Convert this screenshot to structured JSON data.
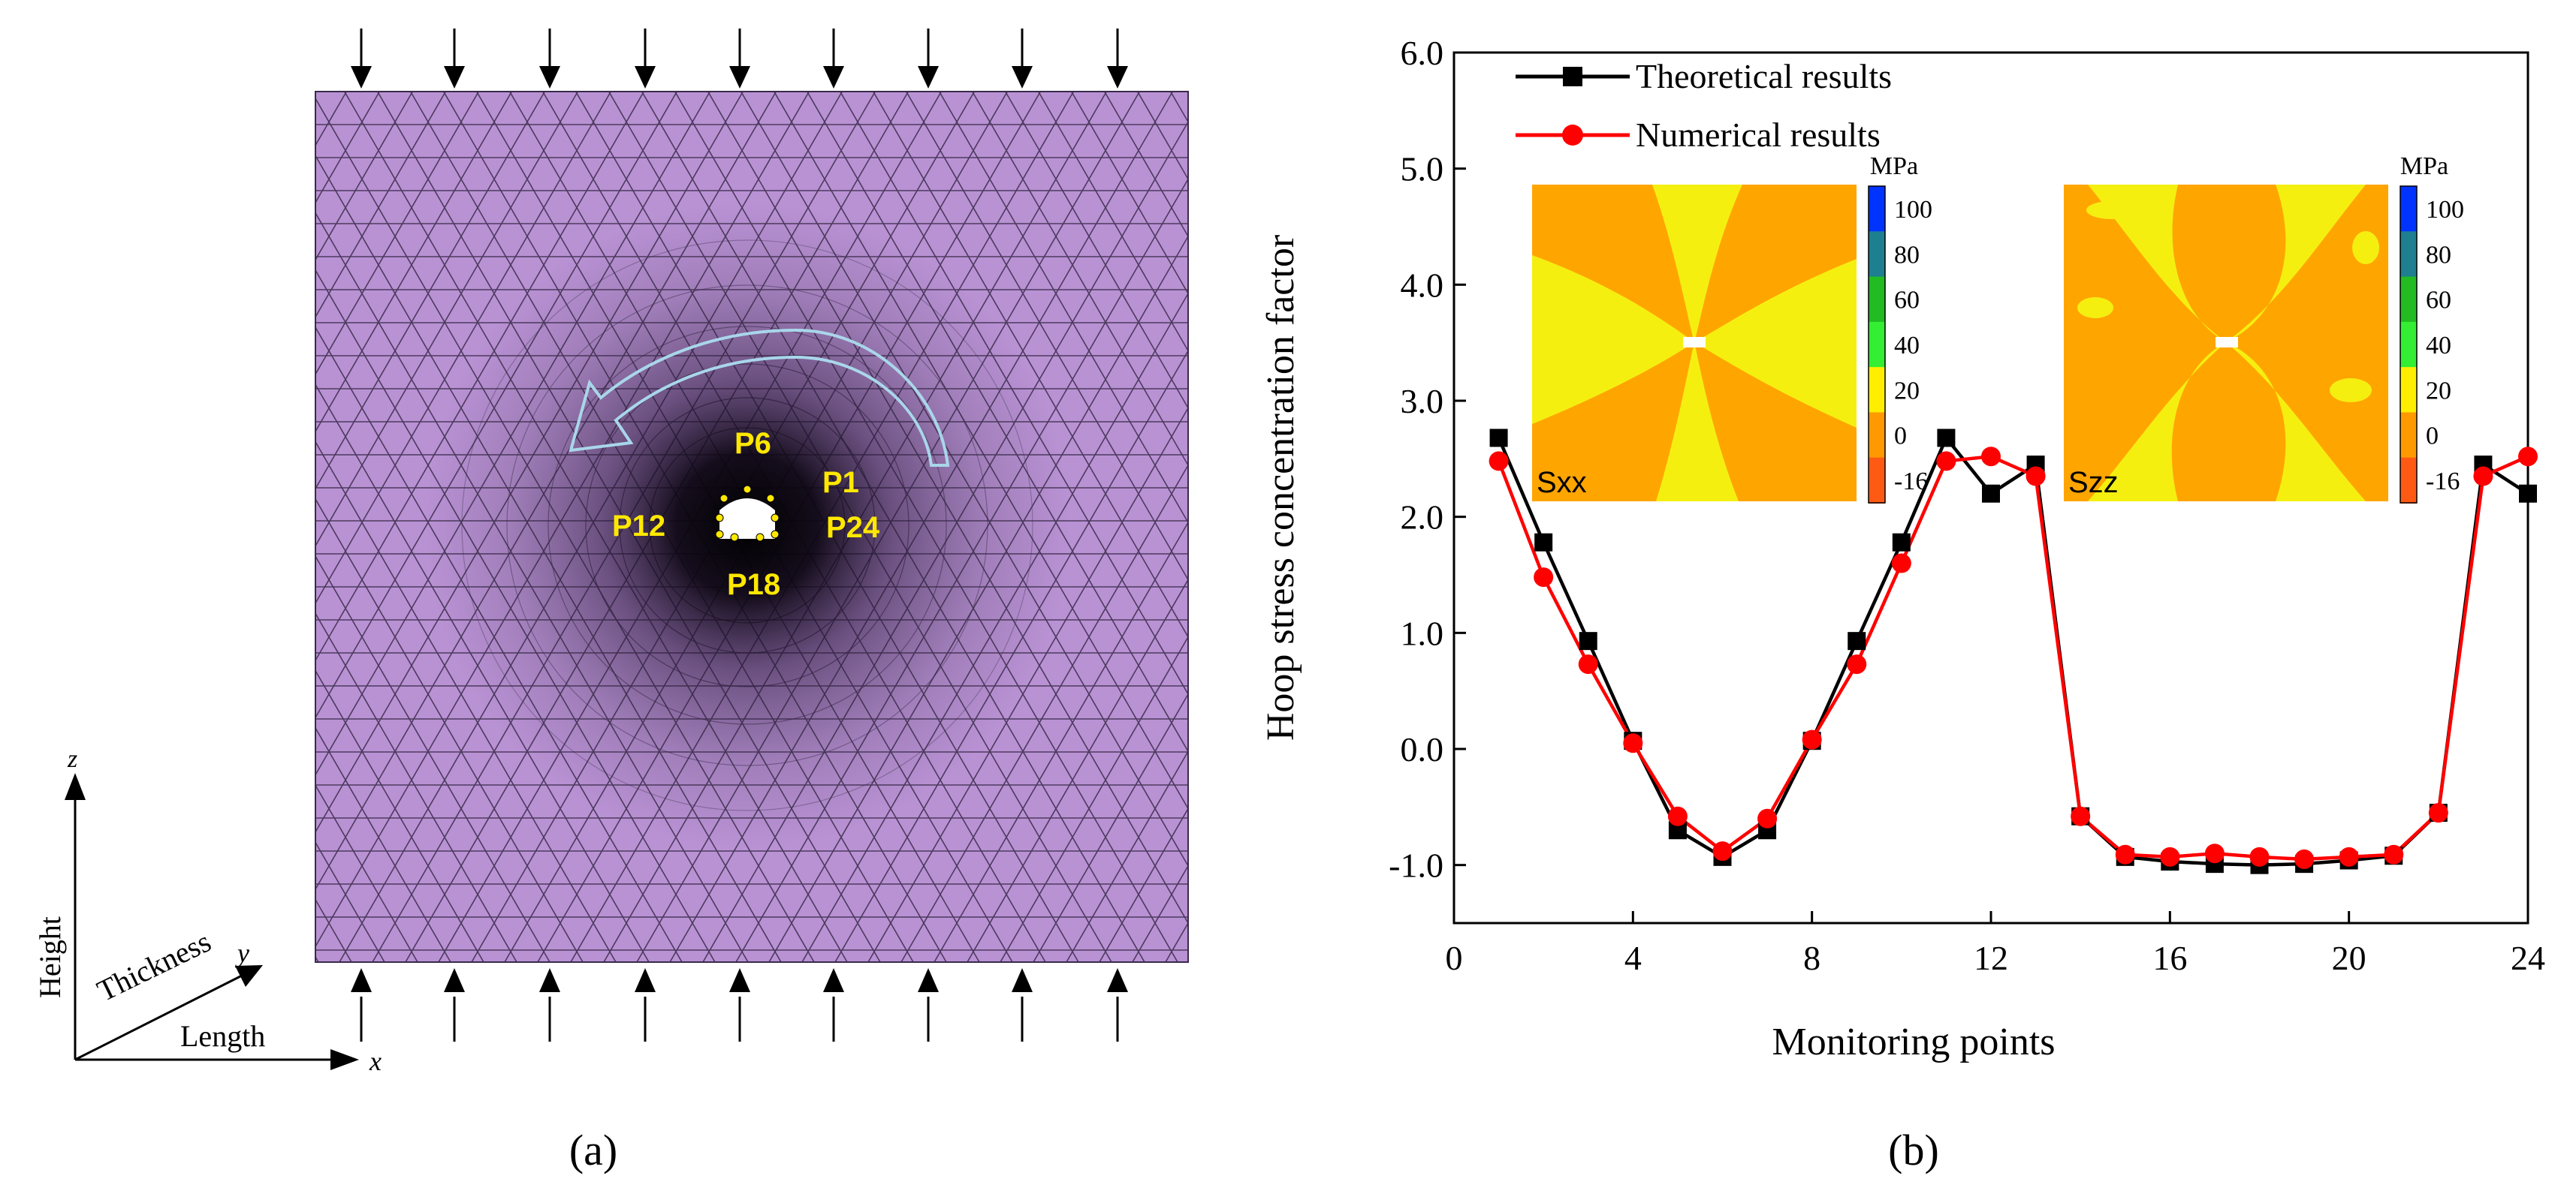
{
  "panel_a": {
    "caption": "(a)",
    "point_labels": [
      "P6",
      "P1",
      "P12",
      "P24",
      "P18"
    ],
    "axes": {
      "vertical": "z",
      "height": "Height",
      "thickness": "Thickness",
      "thickness_axis": "y",
      "length": "Length",
      "length_axis": "x"
    },
    "colors": {
      "mesh_fill": "#b992d4",
      "mesh_line": "#3a2a4a",
      "label": "#ffe800",
      "rotation_arrow": "#a9d6ea"
    }
  },
  "panel_b": {
    "caption": "(b)",
    "inset_sxx_label": "Sxx",
    "inset_szz_label": "Szz",
    "colorbar_unit": "MPa",
    "colorbar_ticks": [
      "100",
      "80",
      "60",
      "40",
      "20",
      "0",
      "-16"
    ],
    "colorbar_colors": [
      "#0033ff",
      "#1d7f8f",
      "#22bb22",
      "#33ee33",
      "#ffee00",
      "#ff9900",
      "#ff5a14"
    ],
    "inset_colors": {
      "orange": "#ffa500",
      "yellow": "#f5ef10"
    }
  },
  "chart_data": {
    "type": "line",
    "xlabel": "Monitoring points",
    "ylabel": "Hoop stress concentration factor",
    "xlim": [
      0,
      24
    ],
    "ylim": [
      -1.5,
      6.0
    ],
    "xticks": [
      0,
      4,
      8,
      12,
      16,
      20,
      24
    ],
    "xtick_labels": [
      "0",
      "4",
      "8",
      "12",
      "16",
      "20",
      "24"
    ],
    "yticks": [
      -1.0,
      0.0,
      1.0,
      2.0,
      3.0,
      4.0,
      5.0,
      6.0
    ],
    "ytick_labels": [
      "-1.0",
      "0.0",
      "1.0",
      "2.0",
      "3.0",
      "4.0",
      "5.0",
      "6.0"
    ],
    "legend_position": "top-left",
    "series": [
      {
        "name": "Theoretical results",
        "color": "#000000",
        "marker": "square",
        "x": [
          1,
          2,
          3,
          4,
          5,
          6,
          7,
          8,
          9,
          10,
          11,
          12,
          13,
          14,
          15,
          16,
          17,
          18,
          19,
          20,
          21,
          22,
          23,
          24
        ],
        "y": [
          2.68,
          1.78,
          0.93,
          0.07,
          -0.7,
          -0.93,
          -0.7,
          0.07,
          0.93,
          1.78,
          2.68,
          2.2,
          2.45,
          -0.58,
          -0.93,
          -0.97,
          -0.99,
          -1.0,
          -0.99,
          -0.96,
          -0.92,
          -0.55,
          2.45,
          2.2
        ]
      },
      {
        "name": "Numerical results",
        "color": "#ff0000",
        "marker": "circle",
        "x": [
          1,
          2,
          3,
          4,
          5,
          6,
          7,
          8,
          9,
          10,
          11,
          12,
          13,
          14,
          15,
          16,
          17,
          18,
          19,
          20,
          21,
          22,
          23,
          24
        ],
        "y": [
          2.48,
          1.48,
          0.73,
          0.05,
          -0.58,
          -0.88,
          -0.6,
          0.08,
          0.73,
          1.6,
          2.48,
          2.52,
          2.35,
          -0.58,
          -0.91,
          -0.93,
          -0.9,
          -0.93,
          -0.95,
          -0.93,
          -0.91,
          -0.55,
          2.35,
          2.52
        ]
      }
    ]
  }
}
